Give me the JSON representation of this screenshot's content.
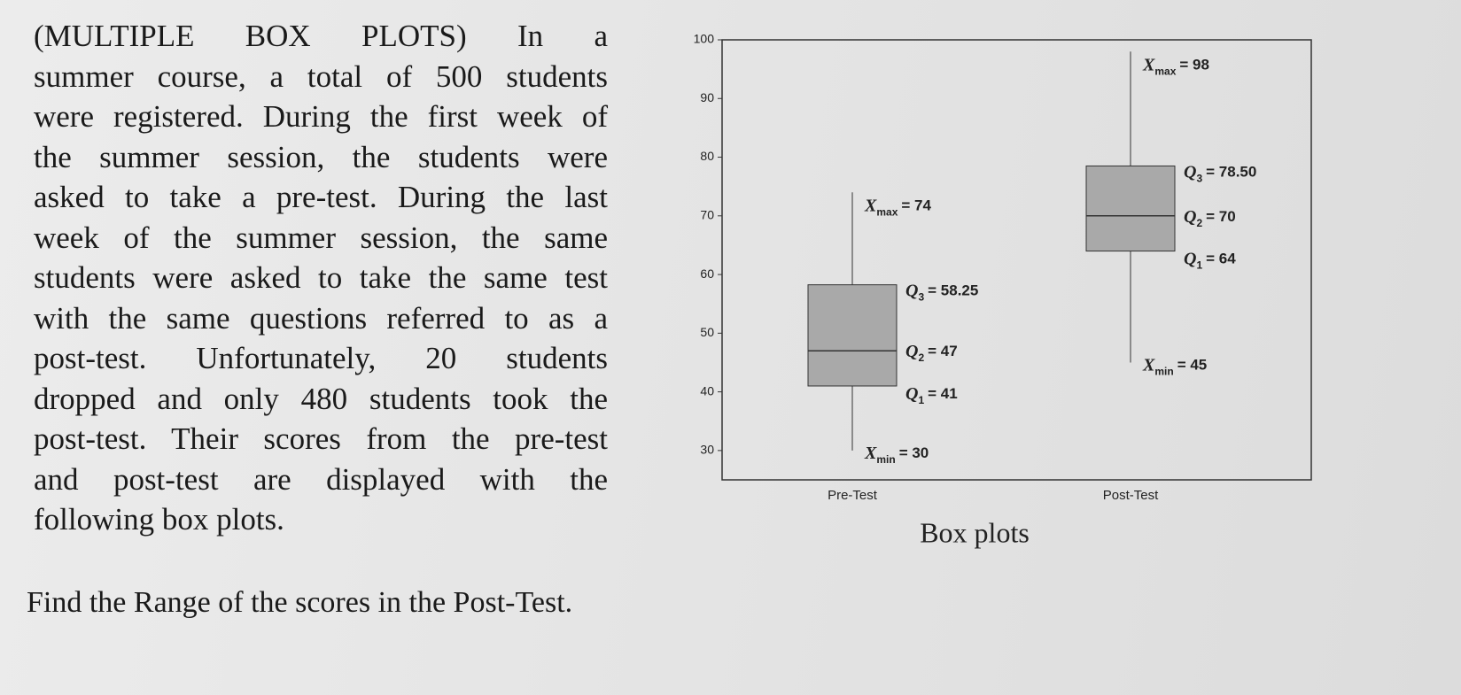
{
  "problem": {
    "lines": [
      "(MULTIPLE BOX PLOTS) In a",
      "summer course, a total of 500 students",
      "were registered. During the first week of",
      "the summer session, the students were",
      "asked to take a pre-test. During the last",
      "week of the summer session, the same",
      "students were asked to take the same test",
      "with the same questions referred to as a",
      "post-test. Unfortunately, 20 students",
      "dropped and only 480 students took the",
      "post-test. Their scores from the pre-test",
      "and post-test are displayed with the",
      "following box plots."
    ],
    "question": "Find the Range of the scores in the Post-Test."
  },
  "chart_data": {
    "type": "box",
    "caption": "Box plots",
    "categories": [
      "Pre-Test",
      "Post-Test"
    ],
    "min": [
      30,
      45
    ],
    "q1": [
      41,
      64
    ],
    "median": [
      47,
      70
    ],
    "q3": [
      58.25,
      78.5
    ],
    "max": [
      74,
      98
    ],
    "symbols": {
      "max": {
        "base": "X",
        "sub": "max"
      },
      "q3": {
        "base": "Q",
        "sub": "3"
      },
      "median": {
        "base": "Q",
        "sub": "2"
      },
      "q1": {
        "base": "Q",
        "sub": "1"
      },
      "min": {
        "base": "X",
        "sub": "min"
      }
    },
    "value_labels": {
      "max": [
        "= 74",
        "= 98"
      ],
      "q3": [
        "= 58.25",
        "= 78.50"
      ],
      "median": [
        "= 47",
        "= 70"
      ],
      "q1": [
        "= 41",
        "= 64"
      ],
      "min": [
        "= 30",
        "= 45"
      ]
    },
    "ylim": [
      25,
      100
    ],
    "yticks": [
      30,
      40,
      50,
      60,
      70,
      80,
      90,
      100
    ],
    "box_color": "#a9a9a9"
  }
}
